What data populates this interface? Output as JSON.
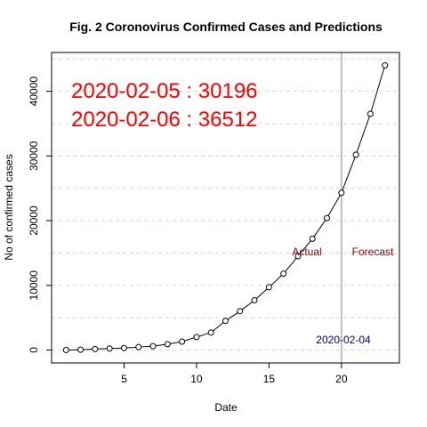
{
  "chart_data": {
    "type": "line",
    "title": "Fig. 2 Coronovirus Confirmed Cases and Predictions",
    "xlabel": "Date",
    "ylabel": "No of confirmed cases",
    "xlim": [
      0,
      24
    ],
    "ylim": [
      -2000,
      46000
    ],
    "x_ticks": [
      5,
      10,
      15,
      20
    ],
    "y_ticks": [
      0,
      10000,
      20000,
      30000,
      40000
    ],
    "grid": "horizontal dashed",
    "series": [
      {
        "x": [
          1,
          2,
          3,
          4,
          5,
          6,
          7,
          8,
          9,
          10,
          11,
          12,
          13,
          14,
          15,
          16,
          17,
          18,
          19,
          20,
          21,
          22,
          23
        ],
        "y": [
          0,
          50,
          150,
          230,
          300,
          450,
          600,
          900,
          1300,
          2000,
          2700,
          4500,
          6000,
          7700,
          9700,
          11800,
          14500,
          17200,
          20400,
          24300,
          30196,
          36512,
          44000
        ]
      }
    ],
    "vline": {
      "x": 20,
      "color": "#bebebe",
      "label": "2020-02-04"
    },
    "annotations": {
      "line1": "2020-02-05 : 30196",
      "line2": "2020-02-06 : 36512",
      "actual": "Actual",
      "forecast": "Forecast"
    },
    "colors": {
      "annotation": "#ff0000",
      "region_label": "#8b0000",
      "date_label": "#00008b",
      "vline": "#bebebe",
      "grid": "#d3d3d3"
    }
  }
}
